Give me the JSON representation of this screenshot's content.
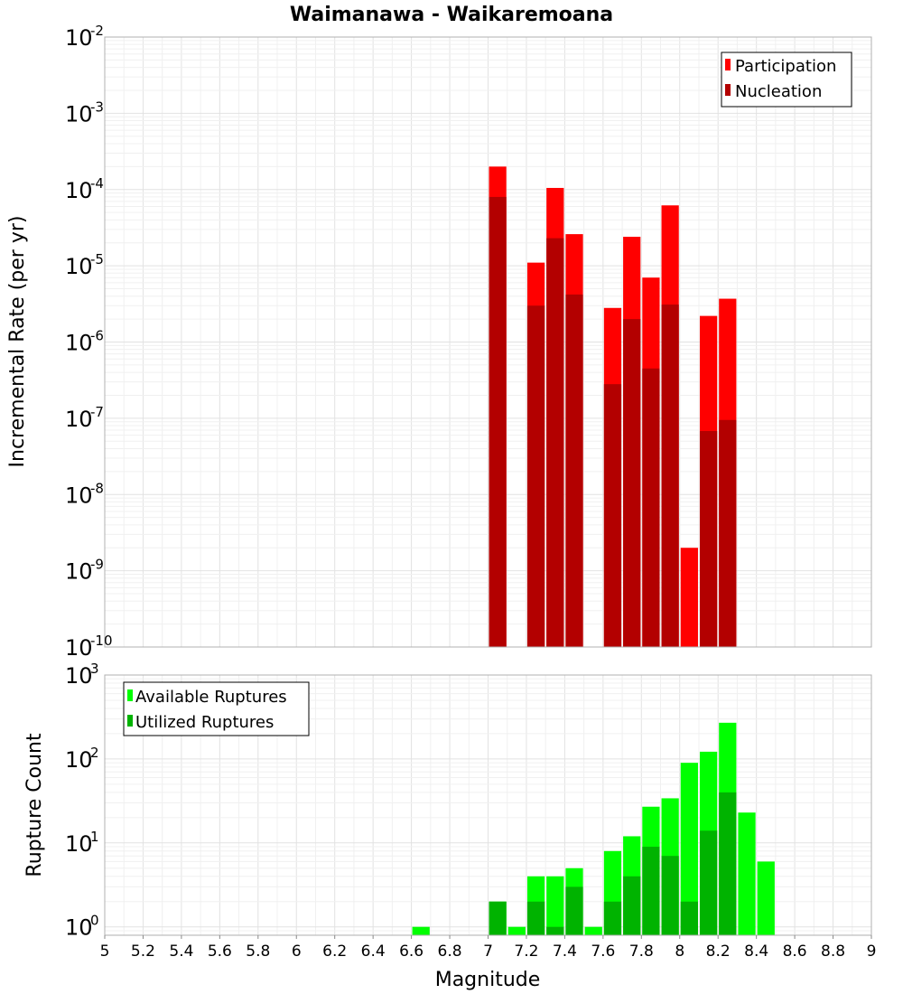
{
  "chart_data": [
    {
      "type": "bar",
      "title": "Waimanawa - Waikaremoana",
      "xlabel": "Magnitude",
      "ylabel": "Incremental Rate (per yr)",
      "yscale": "log",
      "ylim_exp": [
        -10,
        -2
      ],
      "xlim": [
        5,
        9
      ],
      "bin_width": 0.1,
      "legend_position": "top-right",
      "yticks": [
        {
          "base": "10",
          "exp": "-2"
        },
        {
          "base": "10",
          "exp": "-3"
        },
        {
          "base": "10",
          "exp": "-4"
        },
        {
          "base": "10",
          "exp": "-5"
        },
        {
          "base": "10",
          "exp": "-6"
        },
        {
          "base": "10",
          "exp": "-7"
        },
        {
          "base": "10",
          "exp": "-8"
        },
        {
          "base": "10",
          "exp": "-9"
        },
        {
          "base": "10",
          "exp": "-10"
        }
      ],
      "series": [
        {
          "name": "Participation",
          "color": "#ff0000",
          "points": [
            {
              "x": 7.05,
              "y": 0.0002
            },
            {
              "x": 7.25,
              "y": 1.1e-05
            },
            {
              "x": 7.35,
              "y": 0.000105
            },
            {
              "x": 7.45,
              "y": 2.6e-05
            },
            {
              "x": 7.65,
              "y": 2.8e-06
            },
            {
              "x": 7.75,
              "y": 2.4e-05
            },
            {
              "x": 7.85,
              "y": 7e-06
            },
            {
              "x": 7.95,
              "y": 6.2e-05
            },
            {
              "x": 8.05,
              "y": 2e-09
            },
            {
              "x": 8.15,
              "y": 2.2e-06
            },
            {
              "x": 8.25,
              "y": 3.7e-06
            }
          ]
        },
        {
          "name": "Nucleation",
          "color": "#b30000",
          "points": [
            {
              "x": 7.05,
              "y": 8e-05
            },
            {
              "x": 7.25,
              "y": 3e-06
            },
            {
              "x": 7.35,
              "y": 2.3e-05
            },
            {
              "x": 7.45,
              "y": 4.2e-06
            },
            {
              "x": 7.65,
              "y": 2.8e-07
            },
            {
              "x": 7.75,
              "y": 2e-06
            },
            {
              "x": 7.85,
              "y": 4.5e-07
            },
            {
              "x": 7.95,
              "y": 3.1e-06
            },
            {
              "x": 8.15,
              "y": 6.8e-08
            },
            {
              "x": 8.25,
              "y": 9.5e-08
            }
          ]
        }
      ]
    },
    {
      "type": "bar",
      "title": "",
      "xlabel": "Magnitude",
      "ylabel": "Rupture Count",
      "yscale": "log",
      "ylim_exp": [
        -0.1,
        3
      ],
      "xlim": [
        5,
        9
      ],
      "bin_width": 0.1,
      "legend_position": "top-left",
      "xticks": [
        "5",
        "5.2",
        "5.4",
        "5.6",
        "5.8",
        "6",
        "6.2",
        "6.4",
        "6.6",
        "6.8",
        "7",
        "7.2",
        "7.4",
        "7.6",
        "7.8",
        "8",
        "8.2",
        "8.4",
        "8.6",
        "8.8",
        "9"
      ],
      "yticks": [
        {
          "base": "10",
          "exp": "3"
        },
        {
          "base": "10",
          "exp": "2"
        },
        {
          "base": "10",
          "exp": "1"
        },
        {
          "base": "10",
          "exp": "0"
        }
      ],
      "series": [
        {
          "name": "Available Ruptures",
          "color": "#00ff00",
          "points": [
            {
              "x": 6.65,
              "y": 1
            },
            {
              "x": 7.05,
              "y": 2
            },
            {
              "x": 7.15,
              "y": 1
            },
            {
              "x": 7.25,
              "y": 4
            },
            {
              "x": 7.35,
              "y": 4
            },
            {
              "x": 7.45,
              "y": 5
            },
            {
              "x": 7.55,
              "y": 1
            },
            {
              "x": 7.65,
              "y": 8
            },
            {
              "x": 7.75,
              "y": 12
            },
            {
              "x": 7.85,
              "y": 27
            },
            {
              "x": 7.95,
              "y": 34
            },
            {
              "x": 8.05,
              "y": 90
            },
            {
              "x": 8.15,
              "y": 122
            },
            {
              "x": 8.25,
              "y": 270
            },
            {
              "x": 8.35,
              "y": 23
            },
            {
              "x": 8.45,
              "y": 6
            }
          ]
        },
        {
          "name": "Utilized Ruptures",
          "color": "#00b300",
          "points": [
            {
              "x": 7.05,
              "y": 2
            },
            {
              "x": 7.25,
              "y": 2
            },
            {
              "x": 7.35,
              "y": 1
            },
            {
              "x": 7.45,
              "y": 3
            },
            {
              "x": 7.65,
              "y": 2
            },
            {
              "x": 7.75,
              "y": 4
            },
            {
              "x": 7.85,
              "y": 9
            },
            {
              "x": 7.95,
              "y": 7
            },
            {
              "x": 8.05,
              "y": 2
            },
            {
              "x": 8.15,
              "y": 14
            },
            {
              "x": 8.25,
              "y": 40
            }
          ]
        }
      ]
    }
  ]
}
